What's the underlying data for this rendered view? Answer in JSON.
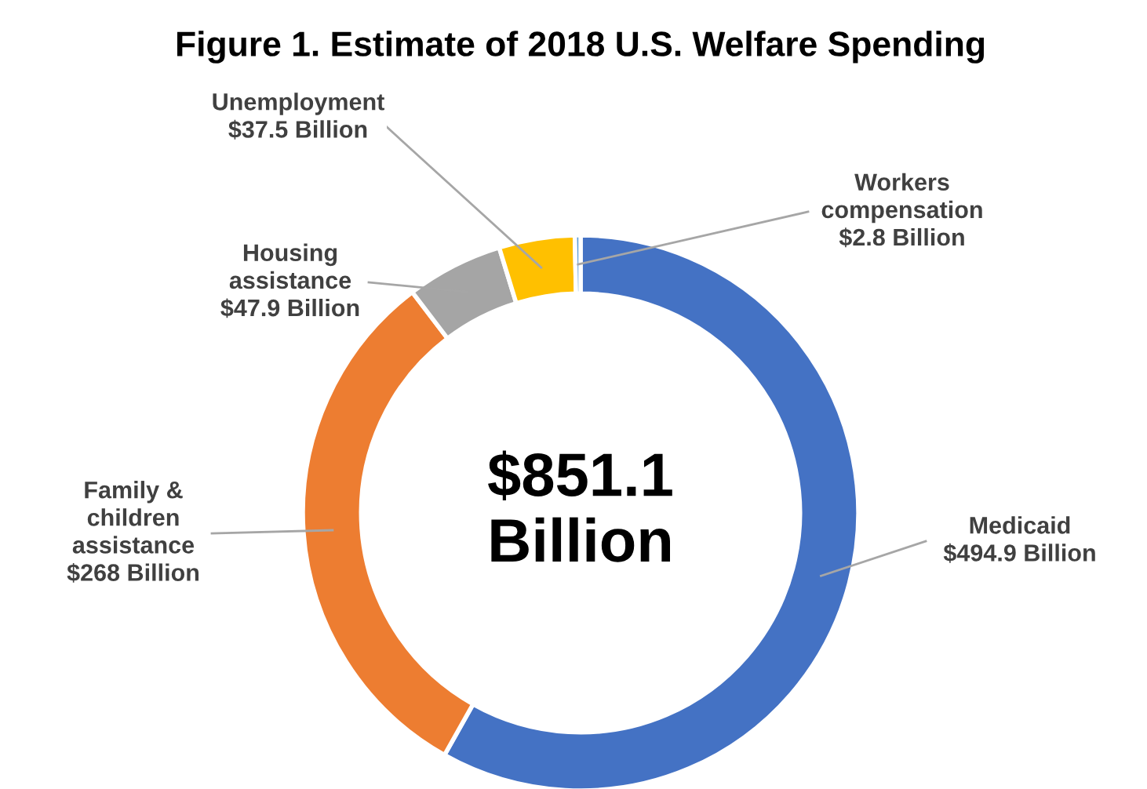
{
  "chart_data": {
    "type": "donut",
    "title": "Figure 1. Estimate of 2018 U.S. Welfare Spending",
    "categories": [
      "Medicaid",
      "Family & children assistance",
      "Housing assistance",
      "Unemployment",
      "Workers compensation"
    ],
    "values": [
      494.9,
      268,
      47.9,
      37.5,
      2.8
    ],
    "colors": [
      "#4472c4",
      "#ed7d31",
      "#a5a5a5",
      "#ffc000",
      "#5b9bd5"
    ],
    "value_labels": [
      "$494.9 Billion",
      "$268 Billion",
      "$47.9 Billion",
      "$37.5 Billion",
      "$2.8 Billion"
    ],
    "annotations": [
      "$851.1 Billion"
    ]
  }
}
